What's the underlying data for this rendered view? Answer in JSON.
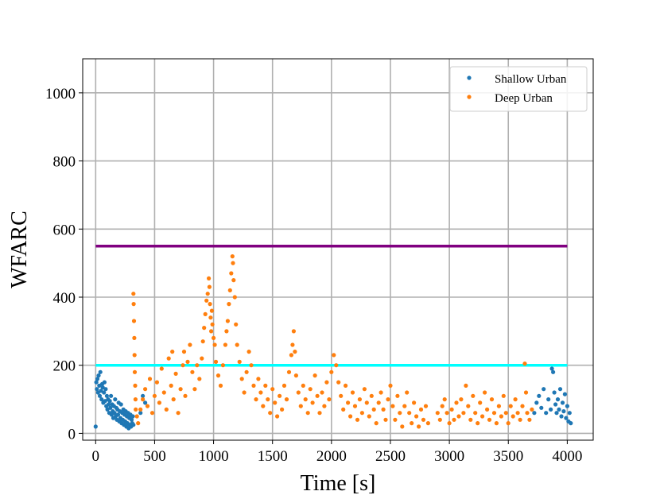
{
  "chart_data": {
    "type": "scatter",
    "xlabel": "Time [s]",
    "ylabel": "WFARC",
    "xlim": [
      -110,
      4220
    ],
    "ylim": [
      -20,
      1100
    ],
    "xticks": [
      0,
      500,
      1000,
      1500,
      2000,
      2500,
      3000,
      3500,
      4000
    ],
    "yticks": [
      0,
      200,
      400,
      600,
      800,
      1000
    ],
    "grid": true,
    "legend": {
      "placement": "top-right"
    },
    "series": [
      {
        "name": "Shallow Urban",
        "color": "#1f77b4",
        "points": [
          [
            0,
            20
          ],
          [
            5,
            150
          ],
          [
            10,
            130
          ],
          [
            15,
            160
          ],
          [
            20,
            120
          ],
          [
            25,
            170
          ],
          [
            30,
            140
          ],
          [
            35,
            110
          ],
          [
            40,
            180
          ],
          [
            45,
            125
          ],
          [
            50,
            100
          ],
          [
            55,
            145
          ],
          [
            60,
            135
          ],
          [
            65,
            90
          ],
          [
            70,
            120
          ],
          [
            75,
            150
          ],
          [
            80,
            95
          ],
          [
            85,
            130
          ],
          [
            90,
            80
          ],
          [
            95,
            110
          ],
          [
            100,
            70
          ],
          [
            105,
            100
          ],
          [
            110,
            85
          ],
          [
            115,
            60
          ],
          [
            120,
            95
          ],
          [
            125,
            75
          ],
          [
            130,
            110
          ],
          [
            135,
            55
          ],
          [
            140,
            85
          ],
          [
            145,
            65
          ],
          [
            150,
            45
          ],
          [
            155,
            80
          ],
          [
            160,
            60
          ],
          [
            165,
            100
          ],
          [
            170,
            50
          ],
          [
            175,
            75
          ],
          [
            180,
            40
          ],
          [
            185,
            70
          ],
          [
            190,
            55
          ],
          [
            195,
            90
          ],
          [
            200,
            35
          ],
          [
            205,
            65
          ],
          [
            210,
            45
          ],
          [
            215,
            85
          ],
          [
            220,
            30
          ],
          [
            225,
            60
          ],
          [
            230,
            40
          ],
          [
            235,
            70
          ],
          [
            240,
            25
          ],
          [
            245,
            55
          ],
          [
            250,
            35
          ],
          [
            255,
            65
          ],
          [
            260,
            20
          ],
          [
            265,
            50
          ],
          [
            270,
            30
          ],
          [
            275,
            60
          ],
          [
            280,
            15
          ],
          [
            285,
            45
          ],
          [
            290,
            25
          ],
          [
            295,
            55
          ],
          [
            300,
            20
          ],
          [
            305,
            40
          ],
          [
            310,
            30
          ],
          [
            315,
            50
          ],
          [
            320,
            25
          ],
          [
            380,
            60
          ],
          [
            400,
            110
          ],
          [
            420,
            90
          ],
          [
            3720,
            60
          ],
          [
            3740,
            90
          ],
          [
            3760,
            110
          ],
          [
            3780,
            75
          ],
          [
            3800,
            130
          ],
          [
            3820,
            60
          ],
          [
            3840,
            100
          ],
          [
            3860,
            70
          ],
          [
            3870,
            190
          ],
          [
            3880,
            180
          ],
          [
            3890,
            120
          ],
          [
            3900,
            85
          ],
          [
            3910,
            60
          ],
          [
            3920,
            100
          ],
          [
            3930,
            70
          ],
          [
            3940,
            130
          ],
          [
            3950,
            50
          ],
          [
            3960,
            90
          ],
          [
            3970,
            65
          ],
          [
            3980,
            115
          ],
          [
            3990,
            45
          ],
          [
            4000,
            80
          ],
          [
            4010,
            35
          ],
          [
            4020,
            60
          ],
          [
            4030,
            30
          ]
        ]
      },
      {
        "name": "Deep Urban",
        "color": "#ff7f0e",
        "points": [
          [
            320,
            410
          ],
          [
            322,
            380
          ],
          [
            325,
            330
          ],
          [
            328,
            280
          ],
          [
            330,
            230
          ],
          [
            332,
            180
          ],
          [
            335,
            140
          ],
          [
            338,
            100
          ],
          [
            340,
            70
          ],
          [
            350,
            50
          ],
          [
            360,
            30
          ],
          [
            380,
            70
          ],
          [
            400,
            100
          ],
          [
            420,
            130
          ],
          [
            440,
            80
          ],
          [
            460,
            160
          ],
          [
            480,
            60
          ],
          [
            500,
            110
          ],
          [
            520,
            150
          ],
          [
            540,
            90
          ],
          [
            560,
            190
          ],
          [
            580,
            120
          ],
          [
            600,
            70
          ],
          [
            620,
            220
          ],
          [
            640,
            140
          ],
          [
            650,
            240
          ],
          [
            660,
            100
          ],
          [
            680,
            175
          ],
          [
            700,
            60
          ],
          [
            720,
            130
          ],
          [
            740,
            200
          ],
          [
            750,
            240
          ],
          [
            760,
            110
          ],
          [
            780,
            210
          ],
          [
            800,
            260
          ],
          [
            820,
            180
          ],
          [
            840,
            130
          ],
          [
            860,
            200
          ],
          [
            880,
            160
          ],
          [
            900,
            220
          ],
          [
            910,
            270
          ],
          [
            920,
            310
          ],
          [
            930,
            350
          ],
          [
            940,
            390
          ],
          [
            950,
            410
          ],
          [
            960,
            455
          ],
          [
            965,
            430
          ],
          [
            970,
            380
          ],
          [
            975,
            340
          ],
          [
            980,
            300
          ],
          [
            985,
            360
          ],
          [
            990,
            320
          ],
          [
            1000,
            280
          ],
          [
            1010,
            260
          ],
          [
            1020,
            210
          ],
          [
            1040,
            170
          ],
          [
            1060,
            140
          ],
          [
            1080,
            200
          ],
          [
            1100,
            260
          ],
          [
            1110,
            300
          ],
          [
            1120,
            330
          ],
          [
            1130,
            380
          ],
          [
            1140,
            420
          ],
          [
            1150,
            470
          ],
          [
            1160,
            520
          ],
          [
            1165,
            500
          ],
          [
            1170,
            450
          ],
          [
            1180,
            400
          ],
          [
            1190,
            320
          ],
          [
            1200,
            260
          ],
          [
            1220,
            210
          ],
          [
            1240,
            160
          ],
          [
            1260,
            120
          ],
          [
            1280,
            180
          ],
          [
            1300,
            240
          ],
          [
            1320,
            200
          ],
          [
            1340,
            140
          ],
          [
            1360,
            100
          ],
          [
            1380,
            160
          ],
          [
            1400,
            120
          ],
          [
            1420,
            80
          ],
          [
            1440,
            140
          ],
          [
            1460,
            100
          ],
          [
            1480,
            60
          ],
          [
            1500,
            130
          ],
          [
            1520,
            90
          ],
          [
            1540,
            50
          ],
          [
            1560,
            110
          ],
          [
            1580,
            70
          ],
          [
            1600,
            140
          ],
          [
            1620,
            100
          ],
          [
            1640,
            180
          ],
          [
            1660,
            230
          ],
          [
            1670,
            260
          ],
          [
            1680,
            300
          ],
          [
            1690,
            240
          ],
          [
            1700,
            170
          ],
          [
            1720,
            120
          ],
          [
            1740,
            80
          ],
          [
            1760,
            140
          ],
          [
            1780,
            100
          ],
          [
            1800,
            60
          ],
          [
            1820,
            130
          ],
          [
            1840,
            90
          ],
          [
            1860,
            170
          ],
          [
            1880,
            110
          ],
          [
            1900,
            60
          ],
          [
            1920,
            120
          ],
          [
            1940,
            80
          ],
          [
            1960,
            150
          ],
          [
            1980,
            100
          ],
          [
            2000,
            180
          ],
          [
            2020,
            230
          ],
          [
            2040,
            200
          ],
          [
            2060,
            150
          ],
          [
            2080,
            110
          ],
          [
            2100,
            70
          ],
          [
            2120,
            140
          ],
          [
            2140,
            90
          ],
          [
            2160,
            50
          ],
          [
            2180,
            120
          ],
          [
            2200,
            80
          ],
          [
            2220,
            40
          ],
          [
            2240,
            100
          ],
          [
            2260,
            60
          ],
          [
            2280,
            130
          ],
          [
            2300,
            90
          ],
          [
            2320,
            50
          ],
          [
            2340,
            110
          ],
          [
            2360,
            70
          ],
          [
            2380,
            30
          ],
          [
            2400,
            90
          ],
          [
            2420,
            120
          ],
          [
            2440,
            70
          ],
          [
            2460,
            40
          ],
          [
            2480,
            100
          ],
          [
            2500,
            140
          ],
          [
            2520,
            80
          ],
          [
            2540,
            40
          ],
          [
            2560,
            110
          ],
          [
            2580,
            60
          ],
          [
            2600,
            20
          ],
          [
            2620,
            80
          ],
          [
            2640,
            120
          ],
          [
            2660,
            60
          ],
          [
            2680,
            30
          ],
          [
            2700,
            90
          ],
          [
            2720,
            50
          ],
          [
            2740,
            20
          ],
          [
            2760,
            70
          ],
          [
            2780,
            40
          ],
          [
            2800,
            80
          ],
          [
            2820,
            30
          ],
          [
            2900,
            60
          ],
          [
            2920,
            40
          ],
          [
            2940,
            80
          ],
          [
            2960,
            100
          ],
          [
            2980,
            60
          ],
          [
            3000,
            30
          ],
          [
            3020,
            70
          ],
          [
            3040,
            40
          ],
          [
            3060,
            90
          ],
          [
            3080,
            50
          ],
          [
            3100,
            100
          ],
          [
            3120,
            60
          ],
          [
            3140,
            140
          ],
          [
            3160,
            80
          ],
          [
            3180,
            40
          ],
          [
            3200,
            110
          ],
          [
            3220,
            60
          ],
          [
            3240,
            30
          ],
          [
            3260,
            90
          ],
          [
            3280,
            50
          ],
          [
            3300,
            120
          ],
          [
            3320,
            70
          ],
          [
            3340,
            40
          ],
          [
            3360,
            100
          ],
          [
            3380,
            60
          ],
          [
            3400,
            30
          ],
          [
            3420,
            80
          ],
          [
            3440,
            50
          ],
          [
            3460,
            110
          ],
          [
            3480,
            60
          ],
          [
            3500,
            30
          ],
          [
            3520,
            80
          ],
          [
            3540,
            50
          ],
          [
            3560,
            100
          ],
          [
            3580,
            60
          ],
          [
            3600,
            40
          ],
          [
            3620,
            80
          ],
          [
            3640,
            205
          ],
          [
            3650,
            120
          ],
          [
            3660,
            60
          ],
          [
            3680,
            40
          ],
          [
            3700,
            70
          ]
        ]
      }
    ],
    "reference_lines": [
      {
        "y": 550,
        "x_start": 0,
        "x_end": 4000,
        "color": "#800080"
      },
      {
        "y": 200,
        "x_start": 0,
        "x_end": 4000,
        "color": "#00ffff"
      }
    ]
  }
}
